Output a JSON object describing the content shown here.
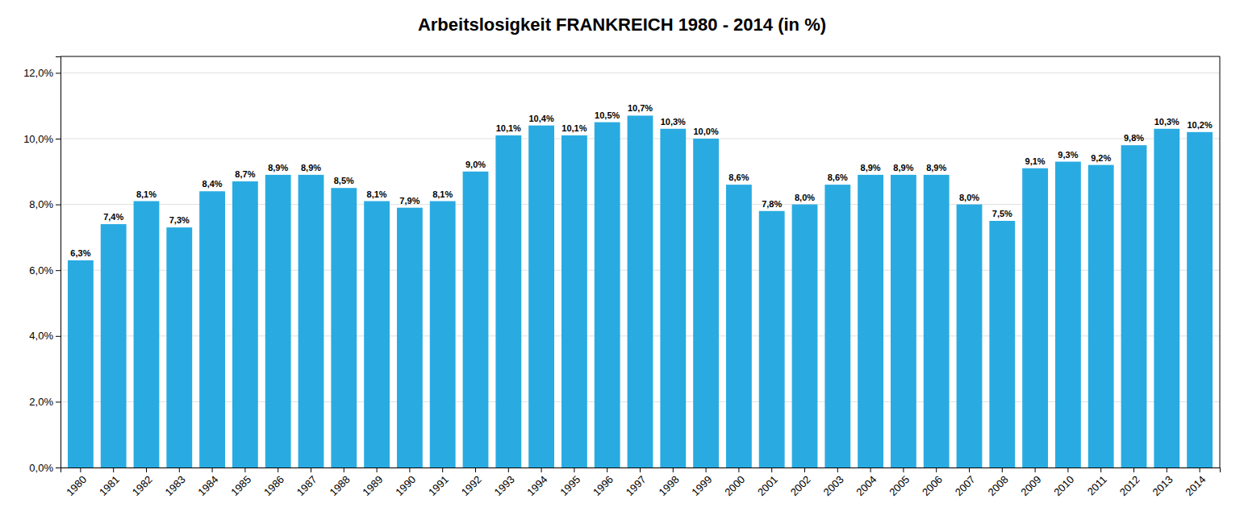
{
  "chart_data": {
    "type": "bar",
    "title": "Arbeitslosigkeit FRANKREICH 1980 - 2014 (in %)",
    "categories": [
      "1980",
      "1981",
      "1982",
      "1983",
      "1984",
      "1985",
      "1986",
      "1987",
      "1988",
      "1989",
      "1990",
      "1991",
      "1992",
      "1993",
      "1994",
      "1995",
      "1996",
      "1997",
      "1998",
      "1999",
      "2000",
      "2001",
      "2002",
      "2003",
      "2004",
      "2005",
      "2006",
      "2007",
      "2008",
      "2009",
      "2010",
      "2011",
      "2012",
      "2013",
      "2014"
    ],
    "values": [
      6.3,
      7.4,
      8.1,
      7.3,
      8.4,
      8.7,
      8.9,
      8.9,
      8.5,
      8.1,
      7.9,
      8.1,
      9.0,
      10.1,
      10.4,
      10.1,
      10.5,
      10.7,
      10.3,
      10.0,
      8.6,
      7.8,
      8.0,
      8.6,
      8.9,
      8.9,
      8.9,
      8.0,
      7.5,
      9.1,
      9.3,
      9.2,
      9.8,
      10.3,
      10.2
    ],
    "value_labels": [
      "6,3%",
      "7,4%",
      "8,1%",
      "7,3%",
      "8,4%",
      "8,7%",
      "8,9%",
      "8,9%",
      "8,5%",
      "8,1%",
      "7,9%",
      "8,1%",
      "9,0%",
      "10,1%",
      "10,4%",
      "10,1%",
      "10,5%",
      "10,7%",
      "10,3%",
      "10,0%",
      "8,6%",
      "7,8%",
      "8,0%",
      "8,6%",
      "8,9%",
      "8,9%",
      "8,9%",
      "8,0%",
      "7,5%",
      "9,1%",
      "9,3%",
      "9,2%",
      "9,8%",
      "10,3%",
      "10,2%"
    ],
    "data_labels": true,
    "color": "#29ABE2",
    "ylim": [
      0,
      12.5
    ],
    "yticks": [
      {
        "value": 0.0,
        "label": "0,0%"
      },
      {
        "value": 2.0,
        "label": "2,0%"
      },
      {
        "value": 4.0,
        "label": "4,0%"
      },
      {
        "value": 6.0,
        "label": "6,0%"
      },
      {
        "value": 8.0,
        "label": "8,0%"
      },
      {
        "value": 10.0,
        "label": "10,0%"
      },
      {
        "value": 12.0,
        "label": "12,0%"
      }
    ],
    "grid": true
  }
}
